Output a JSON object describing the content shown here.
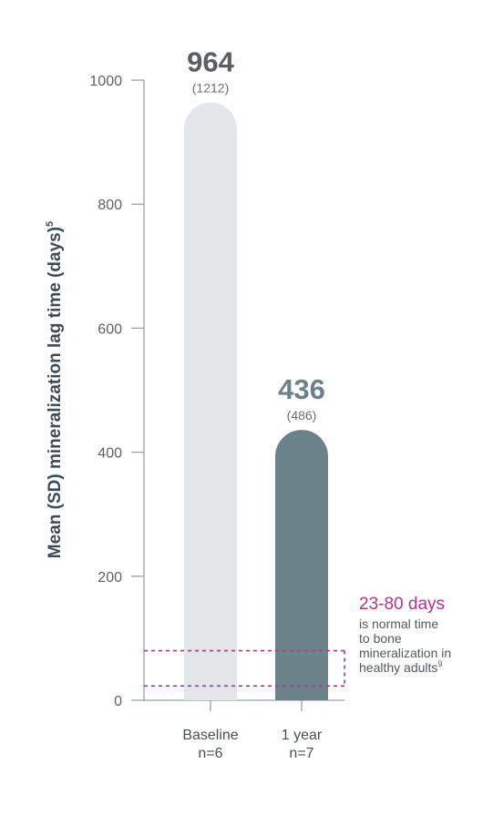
{
  "chart_data": {
    "type": "bar",
    "ylabel": "Mean (SD) mineralization lag time (days)",
    "ylabel_superscript": "5",
    "ylim": [
      0,
      1000
    ],
    "yticks": [
      0,
      200,
      400,
      600,
      800,
      1000
    ],
    "grid": false,
    "categories": [
      {
        "label": "Baseline",
        "n": "n=6"
      },
      {
        "label": "1 year",
        "n": "n=7"
      }
    ],
    "values": [
      964,
      436
    ],
    "value_labels": [
      "964",
      "436"
    ],
    "sd_labels": [
      "(1212)",
      "(486)"
    ],
    "colors": [
      "#e3e7ea",
      "#6b8288"
    ],
    "value_label_colors": [
      "#5b5f62",
      "#6b8288"
    ],
    "normal_range": {
      "low": 23,
      "high": 80,
      "title": "23-80 days",
      "lines": [
        "is normal time",
        "to bone",
        "mineralization in",
        "healthy adults"
      ],
      "superscript": "9",
      "color": "#b5338a"
    }
  }
}
